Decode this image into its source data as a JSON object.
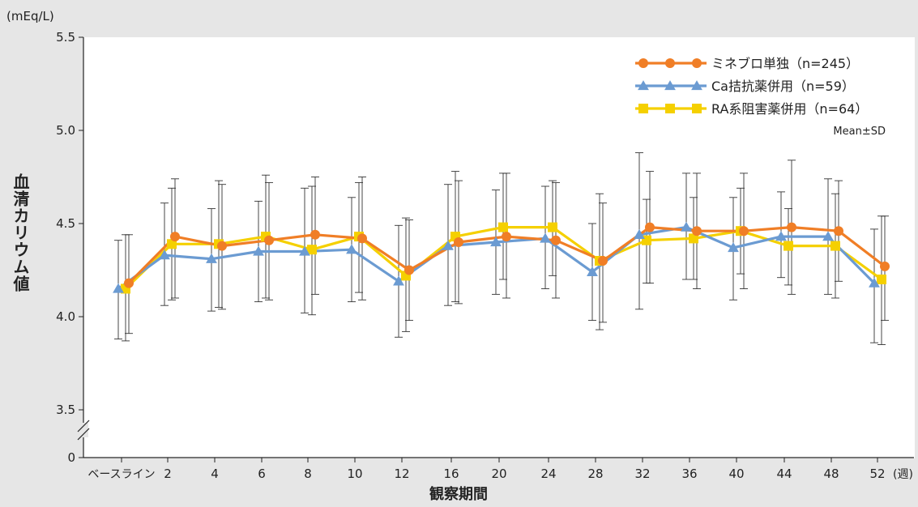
{
  "chart_data": {
    "type": "line",
    "unit_label": "(mEq/L)",
    "xlabel": "観察期間",
    "ylabel": "血清カリウム値",
    "x_unit": "(週)",
    "categories": [
      "ベースライン",
      "2",
      "4",
      "6",
      "8",
      "10",
      "12",
      "16",
      "20",
      "24",
      "28",
      "32",
      "36",
      "40",
      "44",
      "48",
      "52"
    ],
    "y_ticks": [
      "5.5",
      "5.0",
      "4.5",
      "4.0",
      "3.5",
      "0"
    ],
    "ylim": [
      3.5,
      5.5
    ],
    "axis_break": true,
    "grid": false,
    "legend_position": "top-right",
    "note": "Mean±SD",
    "series": [
      {
        "name": "ミネブロ単独（n=245）",
        "color": "#f07e26",
        "marker": "circle",
        "values": [
          4.18,
          4.43,
          4.38,
          4.41,
          4.44,
          4.42,
          4.25,
          4.4,
          4.43,
          4.41,
          4.3,
          4.48,
          4.46,
          4.46,
          4.48,
          4.46,
          4.27
        ],
        "sd_low": [
          3.91,
          4.1,
          4.04,
          4.09,
          4.12,
          4.09,
          3.98,
          4.07,
          4.1,
          4.1,
          3.97,
          4.18,
          4.15,
          4.15,
          4.12,
          4.19,
          3.98
        ],
        "sd_high": [
          4.44,
          4.74,
          4.71,
          4.72,
          4.75,
          4.75,
          4.52,
          4.73,
          4.77,
          4.72,
          4.61,
          4.78,
          4.77,
          4.77,
          4.84,
          4.73,
          4.54
        ]
      },
      {
        "name": "Ca拮抗薬併用（n=59）",
        "color": "#6b9bd2",
        "marker": "triangle",
        "values": [
          4.15,
          4.33,
          4.31,
          4.35,
          4.35,
          4.36,
          4.19,
          4.38,
          4.4,
          4.42,
          4.24,
          4.44,
          4.48,
          4.37,
          4.43,
          4.43,
          4.18
        ],
        "sd_low": [
          3.88,
          4.06,
          4.03,
          4.08,
          4.02,
          4.08,
          3.89,
          4.06,
          4.12,
          4.15,
          3.98,
          4.04,
          4.2,
          4.09,
          4.21,
          4.12,
          3.86
        ],
        "sd_high": [
          4.41,
          4.61,
          4.58,
          4.62,
          4.69,
          4.64,
          4.49,
          4.71,
          4.68,
          4.7,
          4.5,
          4.88,
          4.77,
          4.64,
          4.67,
          4.74,
          4.47
        ]
      },
      {
        "name": "RA系阻害薬併用（n=64）",
        "color": "#f5d000",
        "marker": "square",
        "values": [
          4.15,
          4.39,
          4.39,
          4.43,
          4.36,
          4.43,
          4.22,
          4.43,
          4.48,
          4.48,
          4.3,
          4.41,
          4.42,
          4.46,
          4.38,
          4.38,
          4.2
        ],
        "sd_low": [
          3.87,
          4.09,
          4.05,
          4.1,
          4.01,
          4.13,
          3.92,
          4.08,
          4.2,
          4.22,
          3.93,
          4.18,
          4.2,
          4.23,
          4.17,
          4.1,
          3.85
        ],
        "sd_high": [
          4.44,
          4.69,
          4.73,
          4.76,
          4.7,
          4.72,
          4.53,
          4.78,
          4.77,
          4.73,
          4.66,
          4.63,
          4.64,
          4.69,
          4.58,
          4.66,
          4.54
        ]
      }
    ]
  }
}
